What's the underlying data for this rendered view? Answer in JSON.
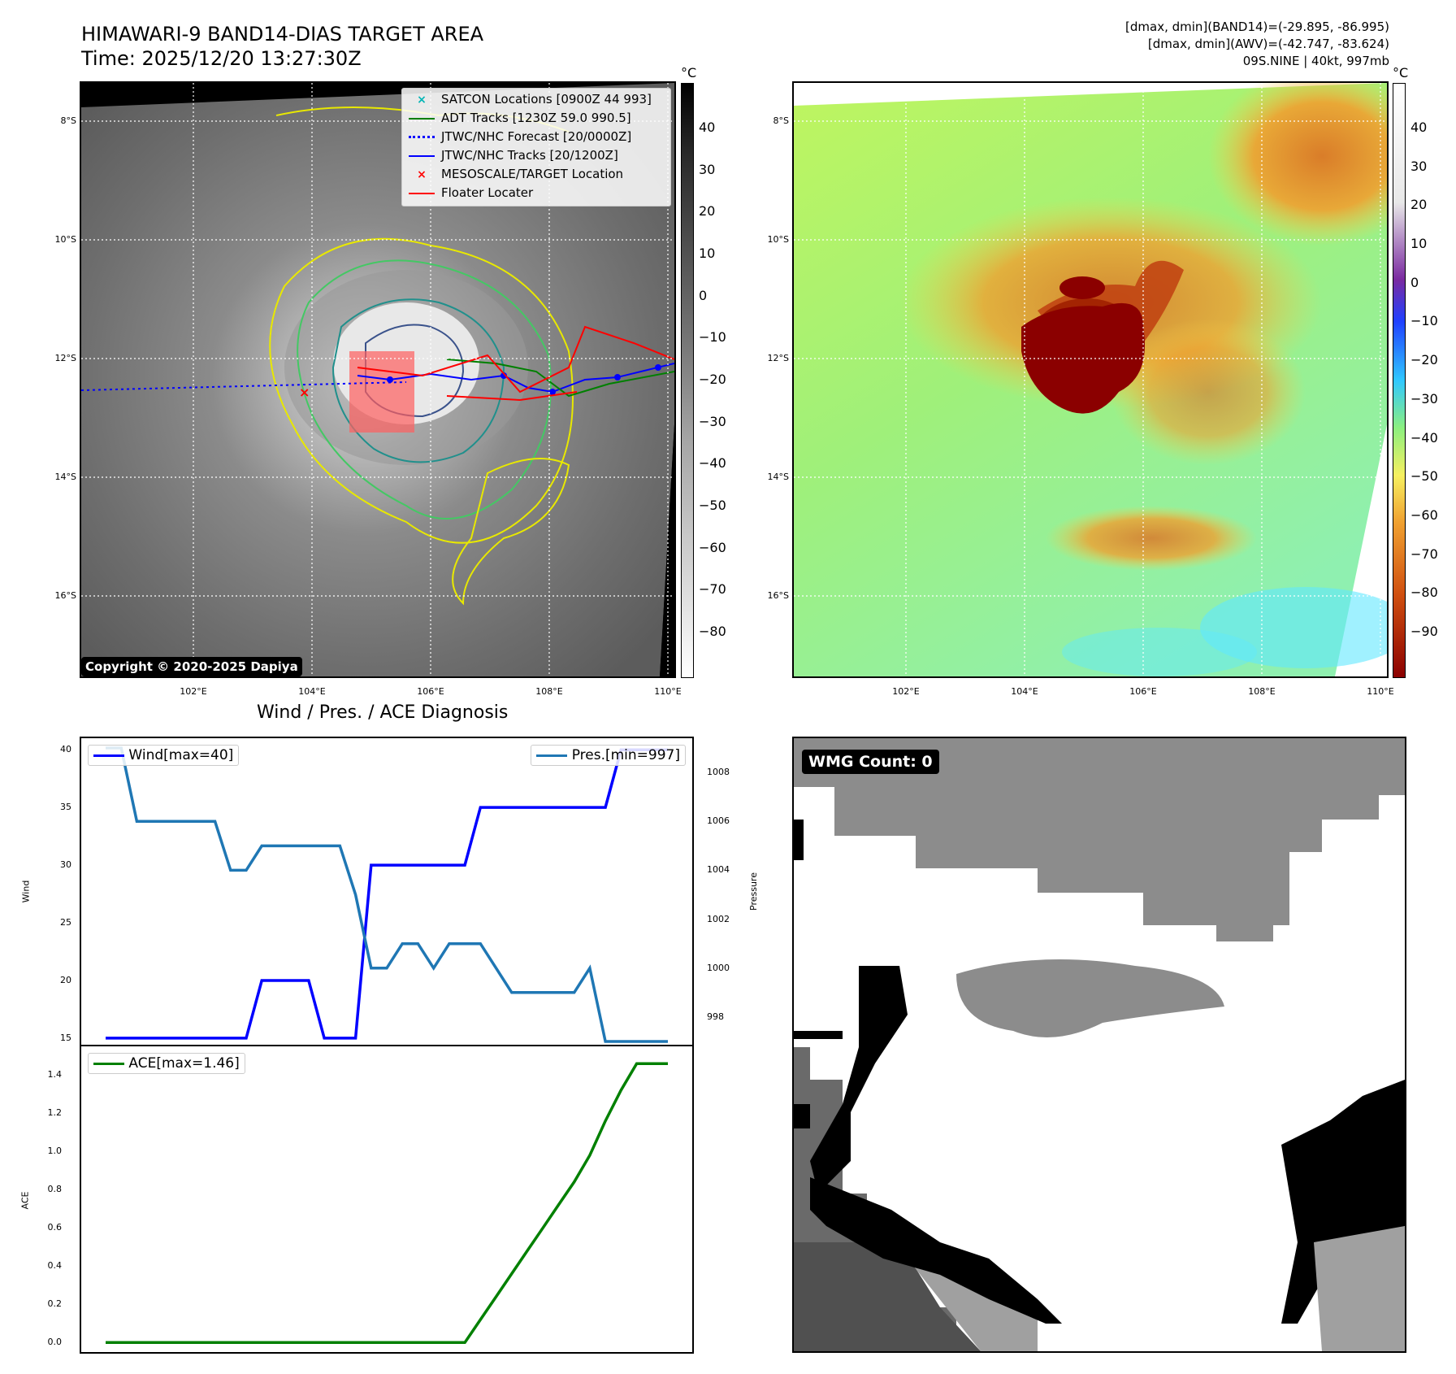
{
  "header": {
    "title_line1": "HIMAWARI-9 BAND14-DIAS TARGET AREA",
    "title_line2": "Time: 2025/12/20 13:27:30Z",
    "right_line1": "[dmax, dmin](BAND14)=(-29.895, -86.995)",
    "right_line2": "[dmax, dmin](AWV)=(-42.747, -83.624)",
    "right_line3": "09S.NINE | 40kt, 997mb"
  },
  "map_axes": {
    "lat_labels": [
      "8°S",
      "10°S",
      "12°S",
      "14°S",
      "16°S"
    ],
    "lon_labels": [
      "102°E",
      "104°E",
      "106°E",
      "108°E",
      "110°E"
    ]
  },
  "ir_panel": {
    "colorbar_unit": "°C",
    "colorbar_ticks": [
      "40",
      "30",
      "20",
      "10",
      "0",
      "−10",
      "−20",
      "−30",
      "−40",
      "−50",
      "−60",
      "−70",
      "−80"
    ],
    "copyright": "Copyright © 2020-2025 Dapiya",
    "legend": [
      {
        "label": "SATCON Locations [0900Z 44 993]",
        "color": "#00b5b5",
        "marker": "x"
      },
      {
        "label": "ADT Tracks [1230Z 59.0 990.5]",
        "color": "#008000",
        "marker": "line"
      },
      {
        "label": "JTWC/NHC Forecast [20/0000Z]",
        "color": "#0000ff",
        "marker": "dotted"
      },
      {
        "label": "JTWC/NHC Tracks [20/1200Z]",
        "color": "#0000ff",
        "marker": "line-dot"
      },
      {
        "label": "MESOSCALE/TARGET Location",
        "color": "#ff0000",
        "marker": "x"
      },
      {
        "label": "Floater Locater",
        "color": "#ff0000",
        "marker": "line"
      }
    ]
  },
  "awv_panel": {
    "colorbar_unit": "°C",
    "colorbar_ticks": [
      "40",
      "30",
      "20",
      "10",
      "0",
      "−10",
      "−20",
      "−30",
      "−40",
      "−50",
      "−60",
      "−70",
      "−80",
      "−90"
    ]
  },
  "wmg_panel": {
    "badge": "WMG Count: 0"
  },
  "chart_data": [
    {
      "type": "line",
      "title": "Wind / Pres. / ACE Diagnosis",
      "ylabel": "Wind",
      "y2label": "Pressure",
      "ylim": [
        14.5,
        41
      ],
      "y2lim": [
        996.9,
        1009.4
      ],
      "yticks": [
        15,
        20,
        25,
        30,
        35,
        40
      ],
      "y2ticks": [
        998,
        1000,
        1002,
        1004,
        1006,
        1008
      ],
      "x": [
        0,
        1,
        2,
        3,
        4,
        5,
        6,
        7,
        8,
        9,
        10,
        11,
        12,
        13,
        14,
        15,
        16,
        17,
        18,
        19,
        20,
        21,
        22,
        23,
        24,
        25,
        26,
        27,
        28,
        29,
        30,
        31,
        32,
        33,
        34,
        35,
        36
      ],
      "series": [
        {
          "name": "Wind[max=40]",
          "axis": "left",
          "color": "#0000ff",
          "values": [
            15,
            15,
            15,
            15,
            15,
            15,
            15,
            15,
            15,
            15,
            20,
            20,
            20,
            20,
            15,
            15,
            15,
            30,
            30,
            30,
            30,
            30,
            30,
            30,
            35,
            35,
            35,
            35,
            35,
            35,
            35,
            35,
            35,
            40,
            40,
            40,
            40
          ]
        },
        {
          "name": "Pres.[min=997]",
          "axis": "right",
          "color": "#1f77b4",
          "values": [
            1009,
            1009,
            1006,
            1006,
            1006,
            1006,
            1006,
            1006,
            1004,
            1004,
            1005,
            1005,
            1005,
            1005,
            1005,
            1005,
            1003,
            1000,
            1000,
            1001,
            1001,
            1000,
            1001,
            1001,
            1001,
            1000,
            999,
            999,
            999,
            999,
            999,
            1000,
            997,
            997,
            997,
            997,
            997
          ]
        }
      ]
    },
    {
      "type": "line",
      "ylabel": "ACE",
      "ylim": [
        -0.05,
        1.55
      ],
      "yticks": [
        0.0,
        0.2,
        0.4,
        0.6,
        0.8,
        1.0,
        1.2,
        1.4
      ],
      "x": [
        0,
        1,
        2,
        3,
        4,
        5,
        6,
        7,
        8,
        9,
        10,
        11,
        12,
        13,
        14,
        15,
        16,
        17,
        18,
        19,
        20,
        21,
        22,
        23,
        24,
        25,
        26,
        27,
        28,
        29,
        30,
        31,
        32,
        33,
        34,
        35,
        36
      ],
      "series": [
        {
          "name": "ACE[max=1.46]",
          "color": "#008000",
          "values": [
            0,
            0,
            0,
            0,
            0,
            0,
            0,
            0,
            0,
            0,
            0,
            0,
            0,
            0,
            0,
            0,
            0,
            0,
            0,
            0,
            0,
            0,
            0,
            0,
            0.12,
            0.24,
            0.36,
            0.48,
            0.6,
            0.72,
            0.84,
            0.98,
            1.16,
            1.32,
            1.46,
            1.46,
            1.46
          ]
        }
      ]
    }
  ]
}
